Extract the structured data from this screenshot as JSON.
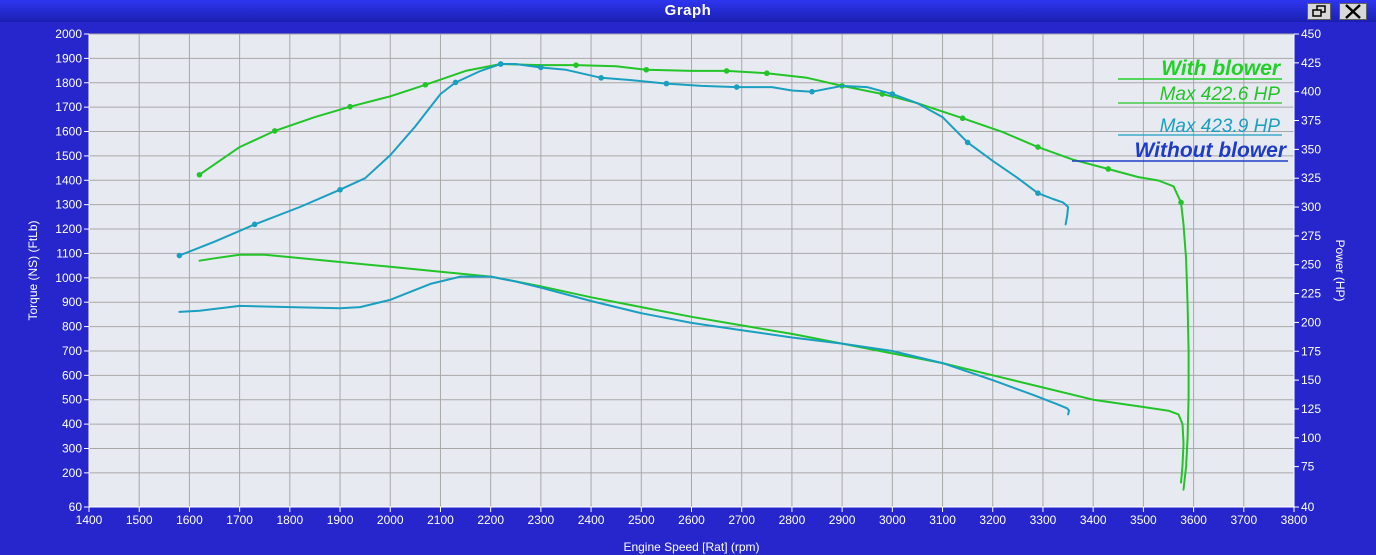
{
  "window": {
    "title": "Graph",
    "restore_icon": "restore-icon",
    "close_icon": "close-icon",
    "background": "#2626cc",
    "plot_background": "#e8eaf2",
    "grid_color": "#a8a8a8"
  },
  "chart_data": {
    "type": "line",
    "xlabel": "Engine Speed [Rat] (rpm)",
    "ylabel_left": "Torque (NS) (FtLb)",
    "ylabel_right": "Power (HP)",
    "xlim": [
      1400,
      3800
    ],
    "x_ticks": [
      1400,
      1500,
      1600,
      1700,
      1800,
      1900,
      2000,
      2100,
      2200,
      2300,
      2400,
      2500,
      2600,
      2700,
      2800,
      2900,
      3000,
      3100,
      3200,
      3300,
      3400,
      3500,
      3600,
      3700,
      3800
    ],
    "ylim_left": [
      60,
      2000
    ],
    "y_left_ticks": [
      60,
      200,
      300,
      400,
      500,
      600,
      700,
      800,
      900,
      1000,
      1100,
      1200,
      1300,
      1400,
      1500,
      1600,
      1700,
      1800,
      1900,
      2000
    ],
    "ylim_right": [
      40,
      450
    ],
    "y_right_ticks": [
      40,
      75,
      100,
      125,
      150,
      175,
      200,
      225,
      250,
      275,
      300,
      325,
      350,
      375,
      400,
      425,
      450
    ],
    "grid": true,
    "annotations": {
      "with_blower": "With blower",
      "with_max": "Max 422.6 HP",
      "without_max": "Max 423.9 HP",
      "without_blower": "Without  blower"
    },
    "series": [
      {
        "color": "#22c428",
        "axis": "right",
        "x": [
          1620,
          1700,
          1770,
          1850,
          1920,
          2000,
          2070,
          2150,
          2220,
          2300,
          2370,
          2450,
          2510,
          2600,
          2670,
          2750,
          2830,
          2900,
          2980,
          3050,
          3140,
          3220,
          3290,
          3360,
          3430,
          3490,
          3530,
          3560,
          3575,
          3580,
          3585,
          3588,
          3590,
          3590,
          3588,
          3585,
          3580
        ],
        "y": [
          328,
          352,
          366,
          378,
          387,
          396,
          406,
          418,
          424,
          423,
          423,
          422,
          419,
          418,
          418,
          416,
          412,
          405,
          398,
          390,
          377,
          365,
          352,
          341,
          333,
          326,
          323,
          318,
          304,
          285,
          255,
          215,
          175,
          135,
          100,
          75,
          55
        ],
        "markers": [
          0,
          2,
          4,
          6,
          8,
          10,
          12,
          14,
          15,
          17,
          18,
          20,
          22,
          24,
          28
        ]
      },
      {
        "color": "#1a9fc0",
        "axis": "right",
        "x": [
          1580,
          1650,
          1730,
          1820,
          1900,
          1950,
          2000,
          2050,
          2100,
          2130,
          2180,
          2220,
          2250,
          2300,
          2350,
          2420,
          2480,
          2550,
          2620,
          2690,
          2760,
          2800,
          2840,
          2900,
          2950,
          3000,
          3050,
          3100,
          3150,
          3200,
          3250,
          3290,
          3320,
          3340,
          3350,
          3348,
          3345
        ],
        "y": [
          258,
          270,
          285,
          300,
          315,
          325,
          345,
          370,
          398,
          408,
          418,
          424,
          424,
          421,
          419,
          412,
          410,
          407,
          405,
          404,
          404,
          401,
          400,
          405,
          404,
          398,
          390,
          378,
          356,
          340,
          325,
          312,
          307,
          304,
          300,
          292,
          285
        ],
        "markers": [
          0,
          2,
          4,
          9,
          11,
          13,
          15,
          17,
          19,
          22,
          25,
          28,
          31
        ]
      },
      {
        "color": "#22c428",
        "axis": "left",
        "x": [
          1620,
          1650,
          1700,
          1750,
          1800,
          1900,
          2000,
          2100,
          2200,
          2300,
          2400,
          2500,
          2600,
          2700,
          2800,
          2900,
          3000,
          3100,
          3200,
          3300,
          3400,
          3500,
          3550,
          3570,
          3578,
          3580,
          3578,
          3575
        ],
        "y": [
          1070,
          1080,
          1095,
          1095,
          1085,
          1065,
          1045,
          1025,
          1005,
          965,
          920,
          880,
          840,
          805,
          770,
          730,
          690,
          650,
          600,
          550,
          500,
          470,
          455,
          440,
          400,
          320,
          230,
          160
        ]
      },
      {
        "color": "#1a9fc0",
        "axis": "left",
        "x": [
          1580,
          1620,
          1700,
          1800,
          1900,
          1940,
          2000,
          2080,
          2140,
          2200,
          2250,
          2300,
          2400,
          2500,
          2600,
          2700,
          2800,
          2900,
          3000,
          3100,
          3200,
          3280,
          3330,
          3348,
          3352,
          3350
        ],
        "y": [
          860,
          865,
          885,
          880,
          875,
          880,
          910,
          975,
          1005,
          1005,
          985,
          960,
          905,
          855,
          815,
          785,
          755,
          730,
          700,
          650,
          580,
          520,
          480,
          465,
          455,
          440
        ]
      }
    ]
  }
}
